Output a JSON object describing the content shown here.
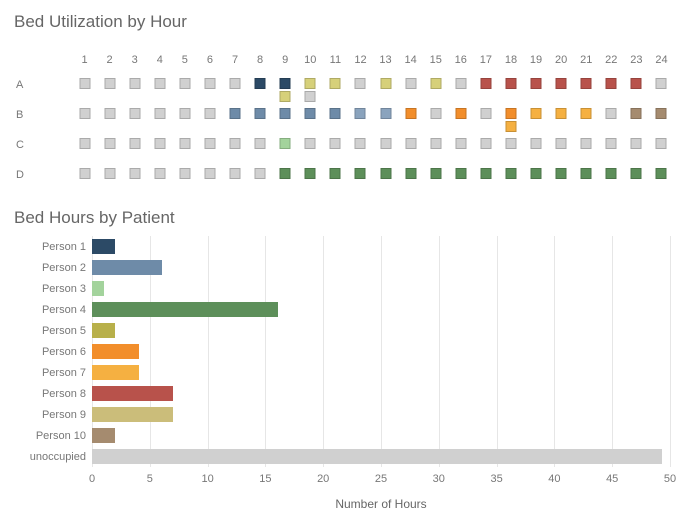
{
  "heatmap": {
    "title": "Bed Utilization by Hour",
    "hours": [
      1,
      2,
      3,
      4,
      5,
      6,
      7,
      8,
      9,
      10,
      11,
      12,
      13,
      14,
      15,
      16,
      17,
      18,
      19,
      20,
      21,
      22,
      23,
      24
    ],
    "rows": [
      "A",
      "B",
      "C",
      "D"
    ],
    "colors": {
      "unoccupied": "#d0d0d0",
      "p1": "#2c4a66",
      "p2": "#6e8ba8",
      "p3": "#a3d39c",
      "p4": "#5d8f5a",
      "p5": "#b8b04a",
      "p6": "#f28e2b",
      "p7": "#f5b041",
      "p8": "#b8524b",
      "p9": "#cbbd7a",
      "p10": "#a58b6f",
      "blue3": "#8aa3bd",
      "olive": "#d6d07a"
    },
    "data": {
      "A": [
        [
          "unoccupied"
        ],
        [
          "unoccupied"
        ],
        [
          "unoccupied"
        ],
        [
          "unoccupied"
        ],
        [
          "unoccupied"
        ],
        [
          "unoccupied"
        ],
        [
          "unoccupied"
        ],
        [
          "p1"
        ],
        [
          "p1",
          "olive"
        ],
        [
          "olive",
          "unoccupied"
        ],
        [
          "olive"
        ],
        [
          "unoccupied"
        ],
        [
          "olive"
        ],
        [
          "unoccupied"
        ],
        [
          "olive"
        ],
        [
          "unoccupied"
        ],
        [
          "p8"
        ],
        [
          "p8"
        ],
        [
          "p8"
        ],
        [
          "p8"
        ],
        [
          "p8"
        ],
        [
          "p8"
        ],
        [
          "p8"
        ],
        [
          "unoccupied"
        ]
      ],
      "B": [
        [
          "unoccupied"
        ],
        [
          "unoccupied"
        ],
        [
          "unoccupied"
        ],
        [
          "unoccupied"
        ],
        [
          "unoccupied"
        ],
        [
          "unoccupied"
        ],
        [
          "p2"
        ],
        [
          "p2"
        ],
        [
          "p2"
        ],
        [
          "p2"
        ],
        [
          "p2"
        ],
        [
          "blue3"
        ],
        [
          "blue3"
        ],
        [
          "p6"
        ],
        [
          "unoccupied"
        ],
        [
          "p6"
        ],
        [
          "unoccupied"
        ],
        [
          "p6",
          "p7"
        ],
        [
          "p7"
        ],
        [
          "p7"
        ],
        [
          "p7"
        ],
        [
          "unoccupied"
        ],
        [
          "p10"
        ],
        [
          "p10"
        ]
      ],
      "C": [
        [
          "unoccupied"
        ],
        [
          "unoccupied"
        ],
        [
          "unoccupied"
        ],
        [
          "unoccupied"
        ],
        [
          "unoccupied"
        ],
        [
          "unoccupied"
        ],
        [
          "unoccupied"
        ],
        [
          "unoccupied"
        ],
        [
          "p3"
        ],
        [
          "unoccupied"
        ],
        [
          "unoccupied"
        ],
        [
          "unoccupied"
        ],
        [
          "unoccupied"
        ],
        [
          "unoccupied"
        ],
        [
          "unoccupied"
        ],
        [
          "unoccupied"
        ],
        [
          "unoccupied"
        ],
        [
          "unoccupied"
        ],
        [
          "unoccupied"
        ],
        [
          "unoccupied"
        ],
        [
          "unoccupied"
        ],
        [
          "unoccupied"
        ],
        [
          "unoccupied"
        ],
        [
          "unoccupied"
        ]
      ],
      "D": [
        [
          "unoccupied"
        ],
        [
          "unoccupied"
        ],
        [
          "unoccupied"
        ],
        [
          "unoccupied"
        ],
        [
          "unoccupied"
        ],
        [
          "unoccupied"
        ],
        [
          "unoccupied"
        ],
        [
          "unoccupied"
        ],
        [
          "p4"
        ],
        [
          "p4"
        ],
        [
          "p4"
        ],
        [
          "p4"
        ],
        [
          "p4"
        ],
        [
          "p4"
        ],
        [
          "p4"
        ],
        [
          "p4"
        ],
        [
          "p4"
        ],
        [
          "p4"
        ],
        [
          "p4"
        ],
        [
          "p4"
        ],
        [
          "p4"
        ],
        [
          "p4"
        ],
        [
          "p4"
        ],
        [
          "p4"
        ]
      ]
    }
  },
  "barchart": {
    "title": "Bed Hours by Patient",
    "xlabel": "Number of Hours",
    "xmax": 50,
    "xtick_step": 5,
    "grid_color": "#e6e6e6",
    "bars": [
      {
        "label": "Person 1",
        "value": 2,
        "color": "#2c4a66"
      },
      {
        "label": "Person 2",
        "value": 6,
        "color": "#6e8ba8"
      },
      {
        "label": "Person 3",
        "value": 1,
        "color": "#a3d39c"
      },
      {
        "label": "Person 4",
        "value": 16,
        "color": "#5d8f5a"
      },
      {
        "label": "Person 5",
        "value": 2,
        "color": "#b8b04a"
      },
      {
        "label": "Person 6",
        "value": 4,
        "color": "#f28e2b"
      },
      {
        "label": "Person 7",
        "value": 4,
        "color": "#f5b041"
      },
      {
        "label": "Person 8",
        "value": 7,
        "color": "#b8524b"
      },
      {
        "label": "Person 9",
        "value": 7,
        "color": "#cbbd7a"
      },
      {
        "label": "Person 10",
        "value": 2,
        "color": "#a58b6f"
      },
      {
        "label": "unoccupied",
        "value": 49,
        "color": "#d0d0d0"
      }
    ]
  }
}
